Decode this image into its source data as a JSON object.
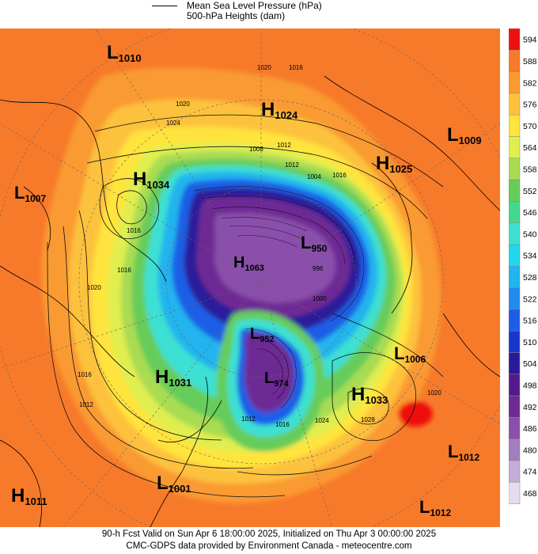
{
  "legend": {
    "line1": "Mean Sea Level Pressure (hPa)",
    "line2": "500-hPa Heights (dam)"
  },
  "scale": {
    "levels": [
      594,
      588,
      582,
      576,
      570,
      564,
      558,
      552,
      546,
      540,
      534,
      528,
      522,
      516,
      510,
      504,
      498,
      492,
      486,
      480,
      474,
      468
    ],
    "colors": [
      "#ee1111",
      "#f77a2a",
      "#fa9a30",
      "#fdc23c",
      "#ffe43c",
      "#e0ee50",
      "#a9dc52",
      "#66cc5a",
      "#44d88c",
      "#3ee0d2",
      "#22d6ee",
      "#22b4ee",
      "#228cee",
      "#1e5ee6",
      "#1836cc",
      "#2a1a9a",
      "#531a8c",
      "#6e2a94",
      "#8a50aa",
      "#a47cc0",
      "#c4acd8",
      "#e6dcee"
    ]
  },
  "systems": [
    {
      "type": "L",
      "value": "1010"
    },
    {
      "type": "H",
      "value": "1024"
    },
    {
      "type": "L",
      "value": "1009"
    },
    {
      "type": "H",
      "value": "1025"
    },
    {
      "type": "H",
      "value": "1034"
    },
    {
      "type": "L",
      "value": "1007"
    },
    {
      "type": "L",
      "value": "950"
    },
    {
      "type": "H",
      "value": "1063"
    },
    {
      "type": "L",
      "value": "952"
    },
    {
      "type": "L",
      "value": "974"
    },
    {
      "type": "L",
      "value": "1006"
    },
    {
      "type": "H",
      "value": "1031"
    },
    {
      "type": "H",
      "value": "1033"
    },
    {
      "type": "L",
      "value": "1012"
    },
    {
      "type": "L",
      "value": "1001"
    },
    {
      "type": "H",
      "value": "1011"
    },
    {
      "type": "L",
      "value": "1012"
    }
  ],
  "isobar_labels": [
    "1020",
    "1016",
    "1020",
    "1024",
    "1016",
    "1012",
    "1008",
    "1004",
    "1016",
    "1012",
    "1020",
    "1016",
    "1016",
    "1012",
    "1000",
    "996",
    "1012",
    "1016",
    "1024",
    "1028",
    "1020"
  ],
  "footer": {
    "line1": "90-h Fcst Valid on Sun Apr  6 18:00:00 2025, Initialized on Thu Apr  3 00:00:00 2025",
    "line2": "CMC-GDPS data provided by Environment Canada - meteocentre.com"
  }
}
